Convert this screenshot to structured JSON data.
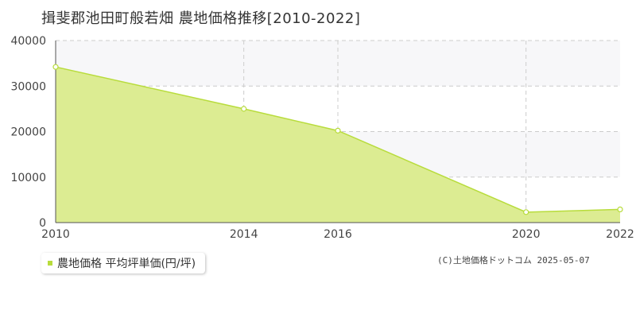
{
  "title": "揖斐郡池田町般若畑 農地価格推移[2010-2022]",
  "legend": {
    "label": "農地価格 平均坪単価(円/坪)"
  },
  "copyright": "(C)土地価格ドットコム 2025-05-07",
  "colors": {
    "fill": "#dcec92",
    "line": "#b8dc3c",
    "marker": "#b8dc3c",
    "band": "#f7f7f9",
    "grid": "#cccccc",
    "axis": "#555555"
  },
  "chart_data": {
    "type": "area",
    "x": [
      2010,
      2014,
      2016,
      2020,
      2022
    ],
    "x_tick_labels": [
      "2010",
      "2014",
      "2016",
      "2020",
      "2022"
    ],
    "xlim": [
      2010,
      2022
    ],
    "series": [
      {
        "name": "農地価格 平均坪単価(円/坪)",
        "values": [
          34200,
          25000,
          20200,
          2300,
          2900
        ]
      }
    ],
    "y_ticks": [
      0,
      10000,
      20000,
      30000,
      40000
    ],
    "ylim": [
      0,
      40000
    ],
    "grid": true,
    "legend_position": "bottom-left"
  }
}
